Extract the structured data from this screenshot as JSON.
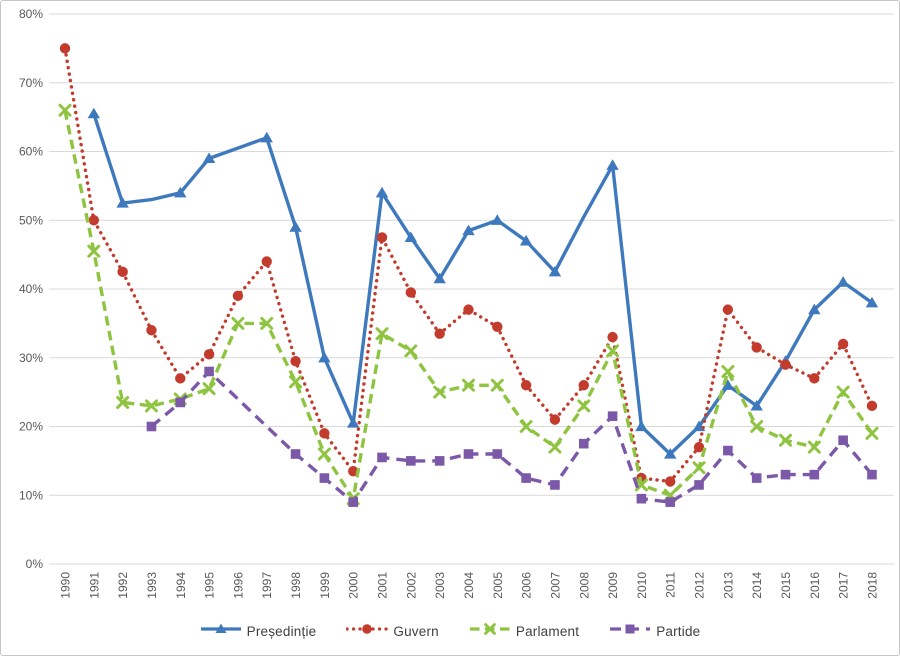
{
  "chart_data": {
    "type": "line",
    "x_categories": [
      "1990",
      "1991",
      "1992",
      "1993",
      "1994",
      "1995",
      "1996",
      "1997",
      "1998",
      "1999",
      "2000",
      "2001",
      "2002",
      "2003",
      "2004",
      "2005",
      "2006",
      "2007",
      "2008",
      "2009",
      "2010",
      "2011",
      "2012",
      "2013",
      "2014",
      "2015",
      "2016",
      "2017",
      "2018"
    ],
    "y_axis": {
      "ticks": [
        "0%",
        "10%",
        "20%",
        "30%",
        "40%",
        "50%",
        "60%",
        "70%",
        "80%"
      ],
      "min": 0,
      "max": 80,
      "grid": true
    },
    "legend_position": "bottom",
    "series": [
      {
        "name": "Președinție",
        "color": "#3e79be",
        "line": "solid",
        "marker": "triangle",
        "values": [
          null,
          65.5,
          52.5,
          53,
          54,
          59,
          60.5,
          62,
          49,
          30,
          20.5,
          54,
          47.5,
          41.5,
          48.5,
          50,
          47,
          42.5,
          50.5,
          58,
          20,
          16,
          20,
          26,
          23,
          29.5,
          37,
          41,
          38
        ],
        "marker_hidden_years": [
          "1993",
          "1996",
          "2008"
        ]
      },
      {
        "name": "Guvern",
        "color": "#c23b2c",
        "line": "dotted",
        "marker": "circle",
        "values": [
          75,
          50,
          42.5,
          34,
          27,
          30.5,
          39,
          44,
          29.5,
          19,
          13.5,
          47.5,
          39.5,
          33.5,
          37,
          34.5,
          26,
          21,
          26,
          33,
          12.5,
          12,
          17,
          37,
          31.5,
          29,
          27,
          32,
          23
        ],
        "marker_hidden_years": []
      },
      {
        "name": "Parlament",
        "color": "#8ec440",
        "line": "dashed",
        "marker": "x",
        "values": [
          66,
          45.5,
          23.5,
          23,
          24,
          25.5,
          35,
          35,
          26.5,
          16,
          9.5,
          33.5,
          31,
          25,
          26,
          26,
          20,
          17,
          23,
          31,
          11.5,
          10,
          14,
          28,
          20,
          18,
          17,
          25,
          19
        ],
        "marker_hidden_years": []
      },
      {
        "name": "Partide",
        "color": "#7c58a8",
        "line": "dashed",
        "marker": "square",
        "values": [
          null,
          null,
          null,
          20,
          23.5,
          28,
          24,
          20,
          16,
          12.5,
          9,
          15.5,
          15,
          15,
          16,
          16,
          12.5,
          11.5,
          17.5,
          21.5,
          9.5,
          9,
          11.5,
          16.5,
          12.5,
          13,
          13,
          18,
          13
        ],
        "marker_hidden_years": [
          "1996",
          "1997"
        ]
      }
    ],
    "colors": {
      "gridline": "#d9d9d9",
      "tick_label": "#595959",
      "legend_text": "#404040"
    }
  }
}
